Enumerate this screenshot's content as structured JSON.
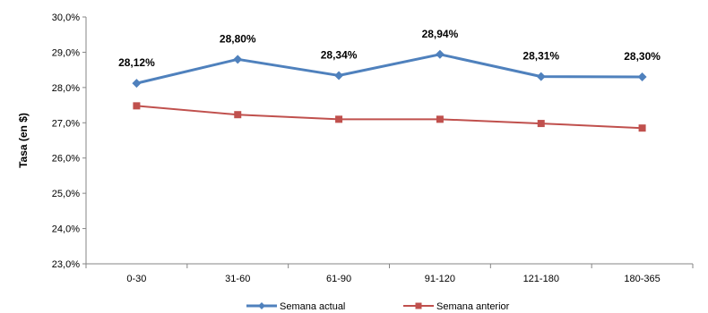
{
  "chart_data": {
    "type": "line",
    "title": "",
    "xlabel": "",
    "ylabel": "Tasa (en $)",
    "categories": [
      "0-30",
      "31-60",
      "61-90",
      "91-120",
      "121-180",
      "180-365"
    ],
    "ylim": [
      23.0,
      30.0
    ],
    "y_ticks": [
      "23,0%",
      "24,0%",
      "25,0%",
      "26,0%",
      "27,0%",
      "28,0%",
      "29,0%",
      "30,0%"
    ],
    "grid": false,
    "legend_position": "bottom",
    "series": [
      {
        "name": "Semana actual",
        "values": [
          28.12,
          28.8,
          28.34,
          28.94,
          28.31,
          28.3
        ],
        "data_labels": [
          "28,12%",
          "28,80%",
          "28,34%",
          "28,94%",
          "28,31%",
          "28,30%"
        ],
        "color": "#4F81BD",
        "marker": "diamond"
      },
      {
        "name": "Semana anterior",
        "values": [
          27.48,
          27.23,
          27.1,
          27.1,
          26.98,
          26.85
        ],
        "color": "#C0504D",
        "marker": "square"
      }
    ]
  }
}
